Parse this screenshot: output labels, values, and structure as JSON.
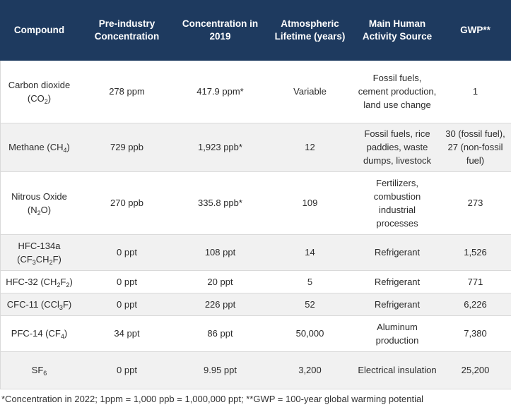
{
  "headers": [
    "Compound",
    "Pre-industry Concentration",
    "Concentration in 2019",
    "Atmospheric Lifetime (years)",
    "Main Human Activity Source",
    "GWP**"
  ],
  "rows": [
    {
      "compound": [
        {
          "t": "Carbon dioxide (CO"
        },
        {
          "s": "2"
        },
        {
          "t": ")"
        }
      ],
      "pre_industry": "278 ppm",
      "conc_2019": "417.9 ppm*",
      "lifetime": "Variable",
      "source": "Fossil fuels, cement production, land use change",
      "gwp": "1"
    },
    {
      "compound": [
        {
          "t": "Methane (CH"
        },
        {
          "s": "4"
        },
        {
          "t": ")"
        }
      ],
      "pre_industry": "729 ppb",
      "conc_2019": "1,923 ppb*",
      "lifetime": "12",
      "source": "Fossil fuels, rice paddies, waste dumps, livestock",
      "gwp": "30 (fossil fuel), 27 (non-fossil fuel)"
    },
    {
      "compound": [
        {
          "t": "Nitrous Oxide (N"
        },
        {
          "s": "2"
        },
        {
          "t": "O)"
        }
      ],
      "pre_industry": "270 ppb",
      "conc_2019": "335.8 ppb*",
      "lifetime": "109",
      "source": "Fertilizers, combustion industrial processes",
      "gwp": "273"
    },
    {
      "compound": [
        {
          "t": "HFC-134a (CF"
        },
        {
          "s": "3"
        },
        {
          "t": "CH"
        },
        {
          "s": "2"
        },
        {
          "t": "F)"
        }
      ],
      "pre_industry": "0 ppt",
      "conc_2019": "108 ppt",
      "lifetime": "14",
      "source": "Refrigerant",
      "gwp": "1,526"
    },
    {
      "compound": [
        {
          "t": "HFC-32 (CH"
        },
        {
          "s": "2"
        },
        {
          "t": "F"
        },
        {
          "s": "2"
        },
        {
          "t": ")"
        }
      ],
      "pre_industry": "0 ppt",
      "conc_2019": "20 ppt",
      "lifetime": "5",
      "source": "Refrigerant",
      "gwp": "771"
    },
    {
      "compound": [
        {
          "t": "CFC-11 (CCl"
        },
        {
          "s": "3"
        },
        {
          "t": "F)"
        }
      ],
      "pre_industry": "0 ppt",
      "conc_2019": "226 ppt",
      "lifetime": "52",
      "source": "Refrigerant",
      "gwp": "6,226"
    },
    {
      "compound": [
        {
          "t": "PFC-14 (CF"
        },
        {
          "s": "4"
        },
        {
          "t": ")"
        }
      ],
      "pre_industry": "34 ppt",
      "conc_2019": "86 ppt",
      "lifetime": "50,000",
      "source": "Aluminum production",
      "gwp": "7,380"
    },
    {
      "compound": [
        {
          "t": "SF"
        },
        {
          "s": "6"
        }
      ],
      "pre_industry": "0 ppt",
      "conc_2019": "9.95 ppt",
      "lifetime": "3,200",
      "source": "Electrical insulation",
      "gwp": "25,200"
    }
  ],
  "footnote": "*Concentration in 2022; 1ppm = 1,000 ppb = 1,000,000 ppt; **GWP = 100-year global warming potential",
  "colors": {
    "header_bg": "#1e3a5f",
    "header_text": "#ffffff",
    "row_alt_bg": "#f1f1f1",
    "border": "#d9d9d9"
  }
}
